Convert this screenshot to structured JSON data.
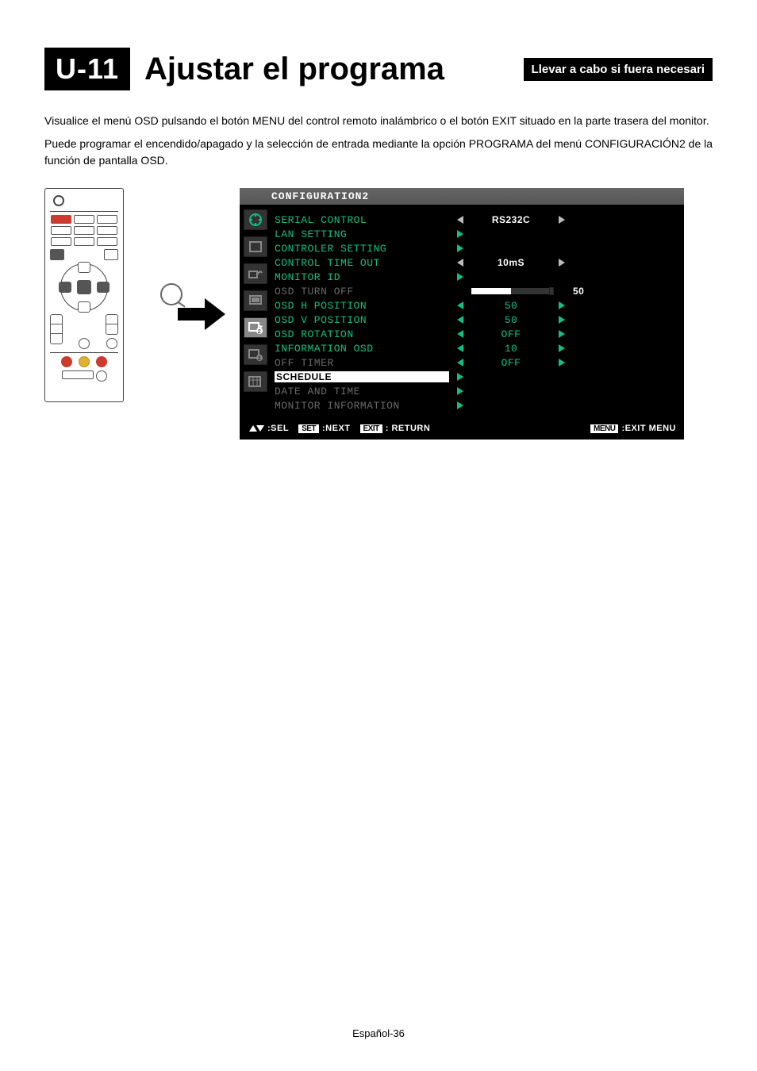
{
  "heading": {
    "badge": "U-11",
    "title": "Ajustar el programa",
    "sub": "Llevar a cabo si fuera necesari"
  },
  "paragraphs": [
    "Visualice el menú OSD pulsando el botón MENU del control remoto inalámbrico o el botón EXIT situado en la parte trasera del monitor.",
    "Puede programar el encendido/apagado y la selección de entrada mediante la opción PROGRAMA del menú CONFIGURACIÓN2 de la función de pantalla OSD."
  ],
  "osd": {
    "title": "CONFIGURATION2",
    "colors": {
      "bg": "#000000",
      "text": "#0fc080",
      "dim": "#6a6a6a",
      "value_white": "#ffffff",
      "titlebar_bg": "#5a5a5a"
    },
    "slider_value": 50,
    "items": [
      {
        "label": "SERIAL CONTROL",
        "mode": "lr",
        "value": "RS232C",
        "value_style": "white",
        "arrow_style": "w"
      },
      {
        "label": "LAN SETTING",
        "mode": "enter"
      },
      {
        "label": "CONTROLER SETTING",
        "mode": "enter"
      },
      {
        "label": "CONTROL TIME OUT",
        "mode": "lr",
        "value": "10mS",
        "value_style": "white",
        "arrow_style": "w"
      },
      {
        "label": "MONITOR ID",
        "mode": "enter"
      },
      {
        "label": "OSD TURN OFF",
        "mode": "slider",
        "value": "50",
        "dim": true
      },
      {
        "label": "OSD H POSITION",
        "mode": "lr",
        "value": "50"
      },
      {
        "label": "OSD V POSITION",
        "mode": "lr",
        "value": "50"
      },
      {
        "label": "OSD ROTATION",
        "mode": "lr",
        "value": "OFF"
      },
      {
        "label": "INFORMATION OSD",
        "mode": "lr",
        "value": "10"
      },
      {
        "label": "OFF TIMER",
        "mode": "lr",
        "value": "OFF",
        "dim": true
      },
      {
        "label": "SCHEDULE",
        "mode": "enter",
        "selected": true
      },
      {
        "label": "DATE AND TIME",
        "mode": "enter",
        "dim": true
      },
      {
        "label": "MONITOR INFORMATION",
        "mode": "enter",
        "dim": true
      }
    ],
    "footer": {
      "sel": ":SEL",
      "set_key": "SET",
      "next": ":NEXT",
      "exit_key": "EXIT",
      "return": ": RETURN",
      "menu_key": "MENU",
      "exitmenu": ":EXIT MENU"
    }
  },
  "page_number": "Español-36"
}
